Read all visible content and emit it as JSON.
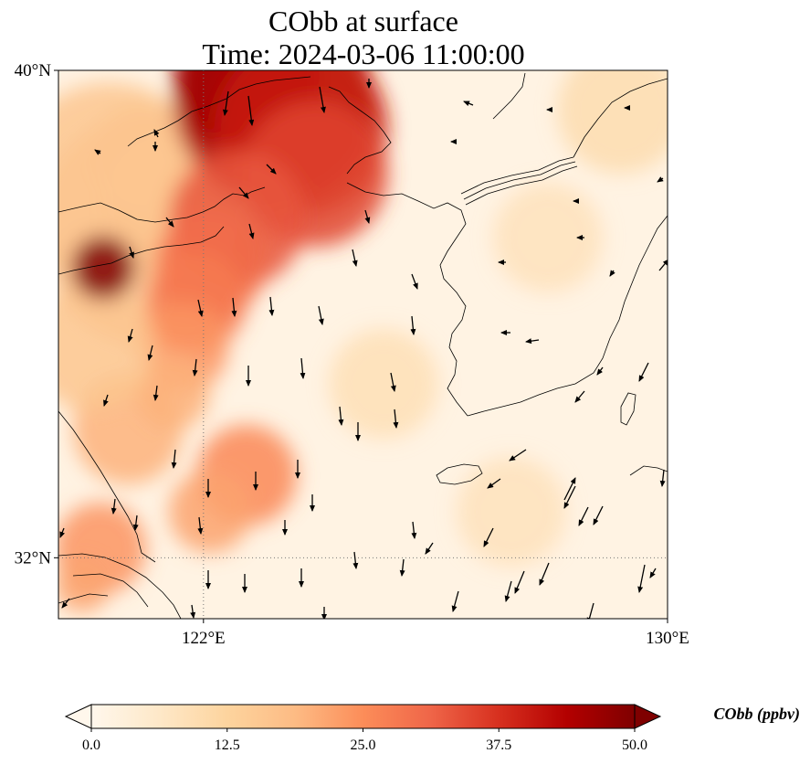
{
  "title": {
    "line1": "CObb at surface",
    "line2": "Time: 2024-03-06 11:00:00"
  },
  "map": {
    "variable": "CObb",
    "level": "surface",
    "projection": "PlateCarree",
    "extent": {
      "lon_min": 119.5,
      "lon_max": 130.0,
      "lat_min": 31.0,
      "lat_max": 40.0
    },
    "gridlines": {
      "style": "dotted",
      "color": "#777777",
      "lons": [
        122
      ],
      "lats": [
        32
      ]
    },
    "lat_ticks": [
      {
        "value": 40,
        "label": "40°N"
      },
      {
        "value": 32,
        "label": "32°N"
      }
    ],
    "lon_ticks": [
      {
        "value": 122,
        "label": "122°E"
      },
      {
        "value": 130,
        "label": "130°E"
      }
    ],
    "vectors": "wind arrows",
    "coastlines": true
  },
  "colorbar": {
    "label": "CObb (ppbv)",
    "colormap": "OrRd",
    "min": 0.0,
    "max": 50.0,
    "extend": "both",
    "ticks": [
      {
        "value": 0.0,
        "label": "0.0"
      },
      {
        "value": 12.5,
        "label": "12.5"
      },
      {
        "value": 25.0,
        "label": "25.0"
      },
      {
        "value": 37.5,
        "label": "37.5"
      },
      {
        "value": 50.0,
        "label": "50.0"
      }
    ],
    "stops": [
      "#fff7ec",
      "#fee8c8",
      "#fdd49e",
      "#fdbb84",
      "#fc8d59",
      "#ef6548",
      "#d7301f",
      "#b30000",
      "#7f0000"
    ]
  }
}
